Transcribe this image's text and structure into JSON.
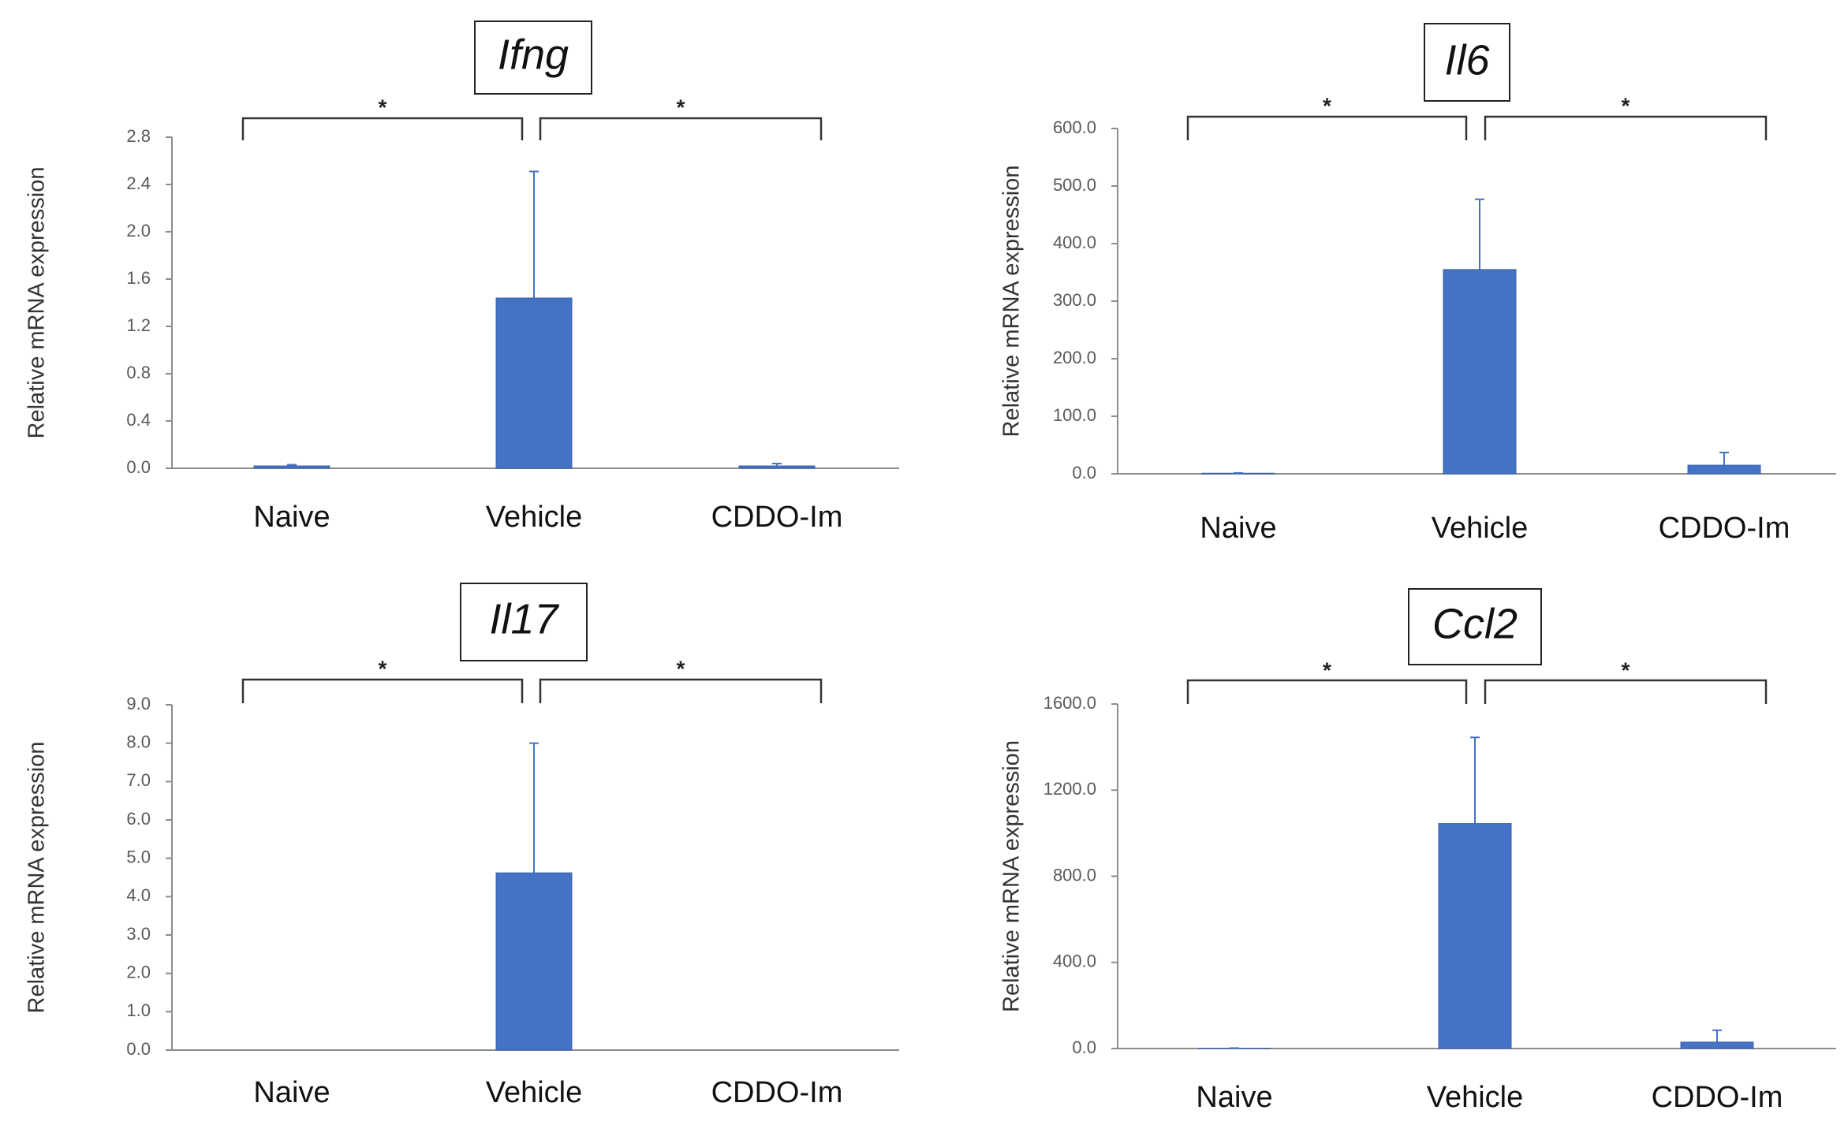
{
  "chart_data": [
    {
      "type": "bar",
      "title": "Ifng",
      "xlabel": "",
      "ylabel": "Relative mRNA expression",
      "categories": [
        "Naive",
        "Vehicle",
        "CDDO-Im"
      ],
      "values": [
        0.02,
        1.44,
        0.02
      ],
      "errors": [
        0.01,
        1.07,
        0.02
      ],
      "ylim": [
        0,
        2.8
      ],
      "yticks": [
        "0.0",
        "0.4",
        "0.8",
        "1.2",
        "1.6",
        "2.0",
        "2.4",
        "2.8"
      ],
      "significance": [
        "*",
        "*"
      ],
      "bar_color": "#4472c4"
    },
    {
      "type": "bar",
      "title": "Il6",
      "xlabel": "",
      "ylabel": "Relative mRNA expression",
      "categories": [
        "Naive",
        "Vehicle",
        "CDDO-Im"
      ],
      "values": [
        1.0,
        355,
        15
      ],
      "errors": [
        0.5,
        122,
        22
      ],
      "ylim": [
        0,
        600
      ],
      "yticks": [
        "0.0",
        "100.0",
        "200.0",
        "300.0",
        "400.0",
        "500.0",
        "600.0"
      ],
      "significance": [
        "*",
        "*"
      ],
      "bar_color": "#4472c4"
    },
    {
      "type": "bar",
      "title": "Il17",
      "xlabel": "",
      "ylabel": "Relative mRNA expression",
      "categories": [
        "Naive",
        "Vehicle",
        "CDDO-Im"
      ],
      "values": [
        0.0,
        4.62,
        0.0
      ],
      "errors": [
        0.0,
        3.38,
        0.0
      ],
      "ylim": [
        0,
        9
      ],
      "yticks": [
        "0.0",
        "1.0",
        "2.0",
        "3.0",
        "4.0",
        "5.0",
        "6.0",
        "7.0",
        "8.0",
        "9.0"
      ],
      "significance": [
        "*",
        "*"
      ],
      "bar_color": "#4472c4"
    },
    {
      "type": "bar",
      "title": "Ccl2",
      "xlabel": "",
      "ylabel": "Relative mRNA expression",
      "categories": [
        "Naive",
        "Vehicle",
        "CDDO-Im"
      ],
      "values": [
        1.0,
        1045,
        30
      ],
      "errors": [
        1.0,
        400,
        55
      ],
      "ylim": [
        0,
        1600
      ],
      "yticks": [
        "0.0",
        "400.0",
        "800.0",
        "1200.0",
        "1600.0"
      ],
      "significance": [
        "*",
        "*"
      ],
      "bar_color": "#4472c4"
    }
  ]
}
